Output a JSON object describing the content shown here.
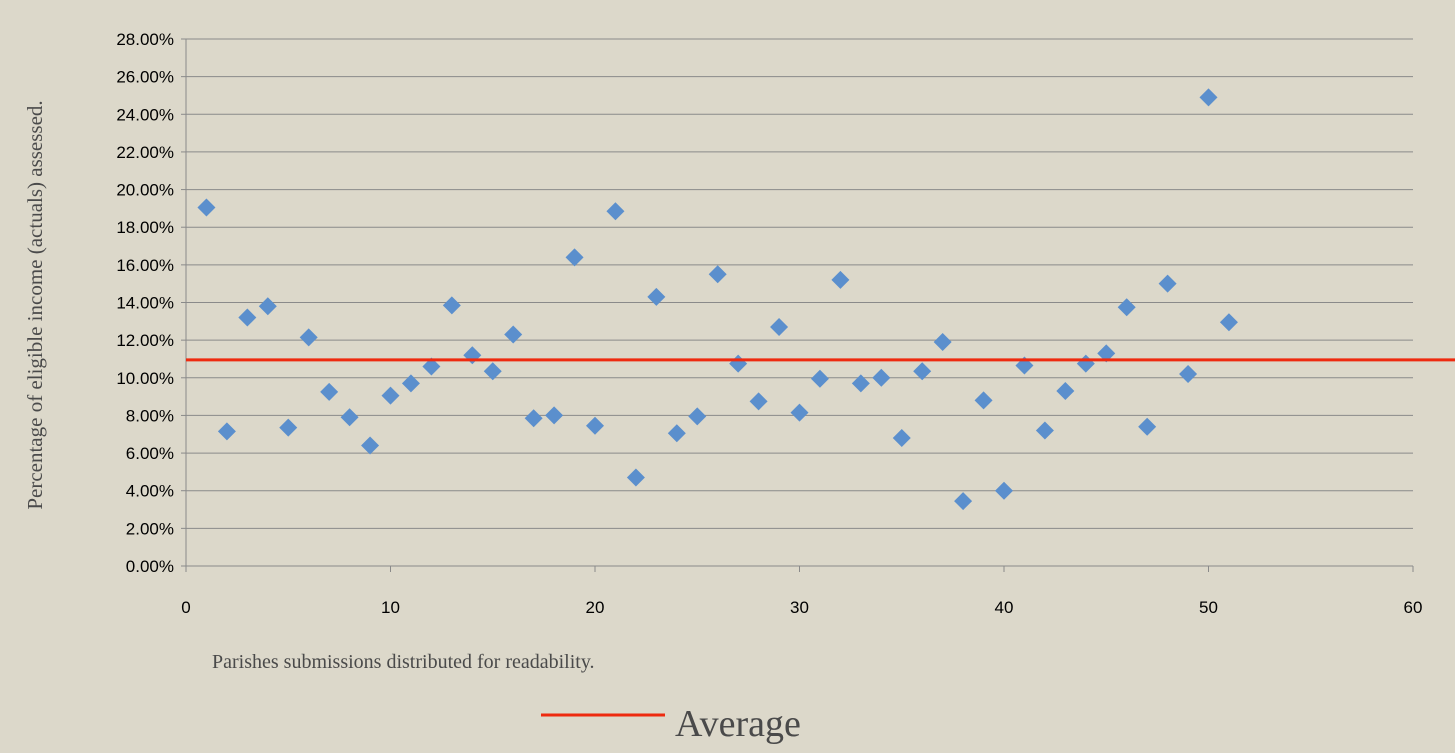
{
  "chart_data": {
    "type": "scatter",
    "title": "",
    "xlabel": "Parishes submissions distributed for readability.",
    "ylabel": "Percentage of eligible income (actuals) assessed.",
    "xlim": [
      0,
      60
    ],
    "ylim": [
      0,
      0.28
    ],
    "x_ticks": [
      "0",
      "10",
      "20",
      "30",
      "40",
      "50",
      "60"
    ],
    "y_ticks": [
      "0.00%",
      "2.00%",
      "4.00%",
      "6.00%",
      "8.00%",
      "10.00%",
      "12.00%",
      "14.00%",
      "16.00%",
      "18.00%",
      "20.00%",
      "22.00%",
      "24.00%",
      "26.00%",
      "28.00%"
    ],
    "grid": "horizontal",
    "legend": {
      "placement": "bottom-center",
      "entries": [
        "Average"
      ]
    },
    "series": [
      {
        "marker": "diamond",
        "color": "#5b8fcd",
        "x": [
          1,
          2,
          3,
          4,
          5,
          6,
          7,
          8,
          9,
          10,
          11,
          12,
          13,
          14,
          15,
          16,
          17,
          18,
          19,
          20,
          21,
          22,
          23,
          24,
          25,
          26,
          27,
          28,
          29,
          30,
          31,
          32,
          33,
          34,
          35,
          36,
          37,
          38,
          39,
          40,
          41,
          42,
          43,
          44,
          45,
          46,
          47,
          48,
          49,
          50,
          51
        ],
        "y": [
          0.1905,
          0.0715,
          0.132,
          0.138,
          0.0735,
          0.1215,
          0.0925,
          0.079,
          0.064,
          0.0905,
          0.097,
          0.106,
          0.1385,
          0.112,
          0.1035,
          0.123,
          0.0785,
          0.08,
          0.164,
          0.0745,
          0.1885,
          0.047,
          0.143,
          0.0705,
          0.0795,
          0.155,
          0.1075,
          0.0875,
          0.127,
          0.0815,
          0.0995,
          0.152,
          0.097,
          0.1,
          0.068,
          0.1035,
          0.119,
          0.0345,
          0.088,
          0.04,
          0.1065,
          0.072,
          0.093,
          0.1075,
          0.113,
          0.1375,
          0.074,
          0.15,
          0.102,
          0.249,
          0.1295
        ]
      }
    ],
    "average": {
      "name": "Average",
      "value": 0.1095,
      "color": "#ee2a0f"
    }
  }
}
